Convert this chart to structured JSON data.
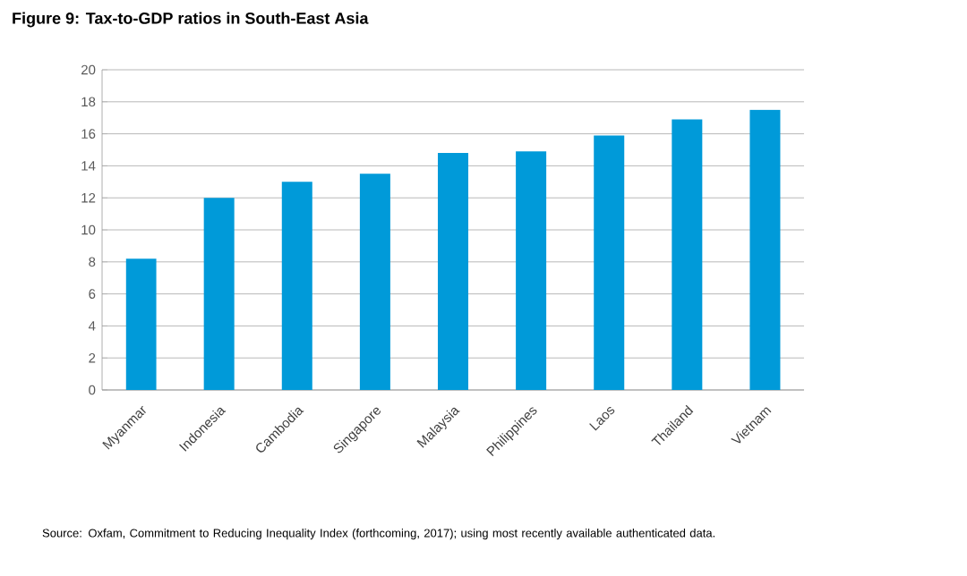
{
  "chart_data": {
    "type": "bar",
    "title": "Figure 9: Tax-to-GDP ratios in South-East Asia",
    "categories": [
      "Myanmar",
      "Indonesia",
      "Cambodia",
      "Singapore",
      "Malaysia",
      "Philippines",
      "Laos",
      "Thailand",
      "Vietnam"
    ],
    "values": [
      8.2,
      12.0,
      13.0,
      13.5,
      14.8,
      14.9,
      15.9,
      16.9,
      17.5
    ],
    "color": "#009ad9",
    "ylim": [
      0,
      20
    ],
    "yticks": [
      0,
      2,
      4,
      6,
      8,
      10,
      12,
      14,
      16,
      18,
      20
    ],
    "grid": "y",
    "annotations": [
      "Source: Oxfam, Commitment to Reducing Inequality Index (forthcoming, 2017); using most recently available authenticated data."
    ]
  }
}
